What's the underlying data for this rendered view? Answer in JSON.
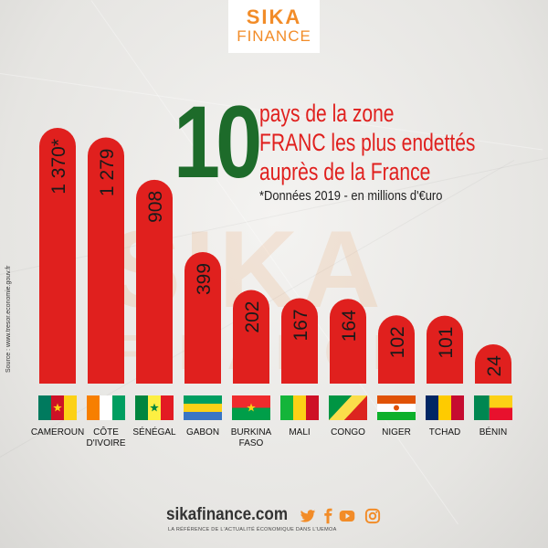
{
  "logo": {
    "top": "SIKA",
    "bottom": "FINANCE"
  },
  "headline": {
    "number": "10",
    "line1": "pays de la zone",
    "line2": "FRANC les plus endettés",
    "line3": "auprès de la France",
    "note": "*Données 2019 - en millions d'€uro"
  },
  "source": "Source : www.tresor.economie.gouv.fr",
  "watermark": {
    "main": "SIKA",
    "sub": "FINANCE"
  },
  "footer": {
    "site": "sikafinance.com",
    "tagline": "LA RÉFÉRENCE DE L'ACTUALITÉ ÉCONOMIQUE DANS L'UEMOA",
    "icons": [
      "twitter-icon",
      "facebook-icon",
      "youtube-icon",
      "instagram-icon"
    ]
  },
  "colors": {
    "bar": "#e0201e",
    "green": "#1d6b2a",
    "orange": "#f28c28"
  },
  "chart_data": {
    "type": "bar",
    "title": "10 pays de la zone FRANC les plus endettés auprès de la France",
    "subtitle": "*Données 2019 - en millions d'€uro",
    "categories": [
      "CAMEROUN",
      "CÔTE D'IVOIRE",
      "SÉNÉGAL",
      "GABON",
      "BURKINA FASO",
      "MALI",
      "CONGO",
      "NIGER",
      "TCHAD",
      "BÉNIN"
    ],
    "category_lines": [
      [
        "CAMEROUN"
      ],
      [
        "CÔTE",
        "D'IVOIRE"
      ],
      [
        "SÉNÉGAL"
      ],
      [
        "GABON"
      ],
      [
        "BURKINA",
        "FASO"
      ],
      [
        "MALI"
      ],
      [
        "CONGO"
      ],
      [
        "NIGER"
      ],
      [
        "TCHAD"
      ],
      [
        "BÉNIN"
      ]
    ],
    "values": [
      1370,
      1279,
      908,
      399,
      202,
      167,
      164,
      102,
      101,
      24
    ],
    "value_labels": [
      "1 370*",
      "1 279",
      "908",
      "399",
      "202",
      "167",
      "164",
      "102",
      "101",
      "24"
    ],
    "flags": [
      "cameroon-flag",
      "cote-divoire-flag",
      "senegal-flag",
      "gabon-flag",
      "burkina-faso-flag",
      "mali-flag",
      "congo-flag",
      "niger-flag",
      "chad-flag",
      "benin-flag"
    ],
    "xlabel": "",
    "ylabel": "",
    "grid": false,
    "legend": "none"
  }
}
